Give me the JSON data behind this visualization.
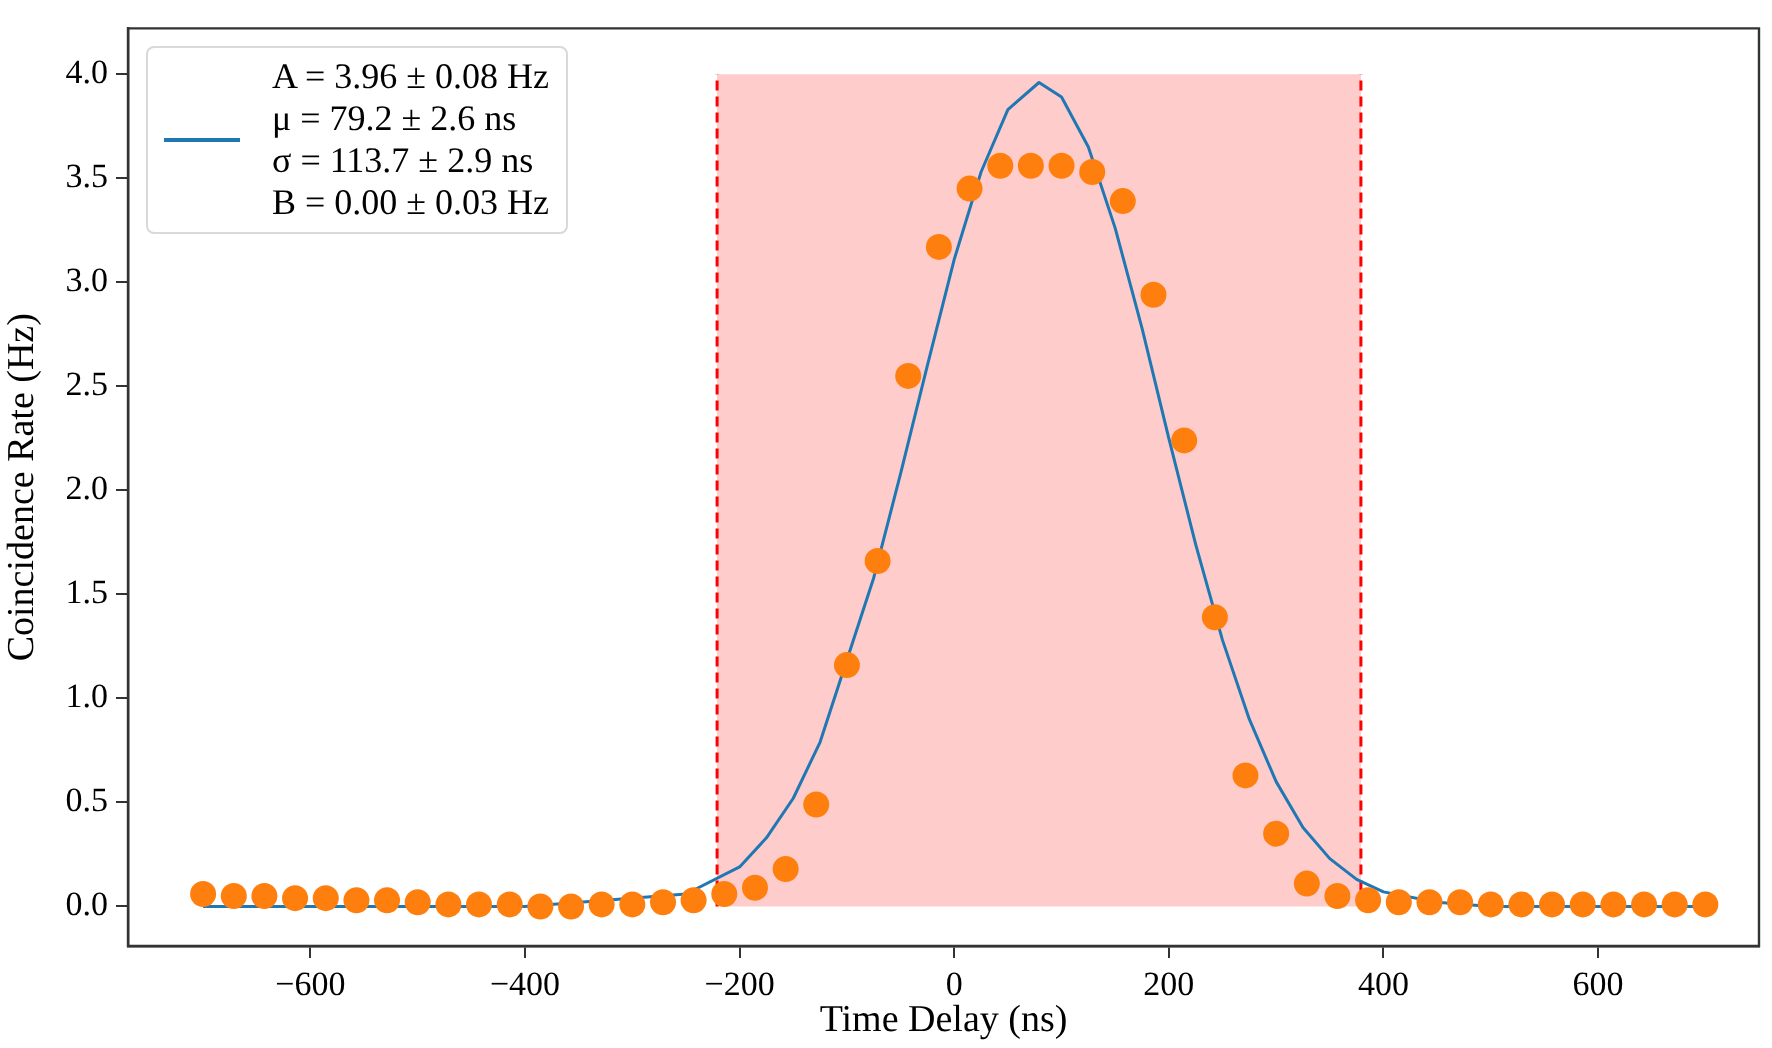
{
  "chart_data": {
    "type": "scatter",
    "xlabel": "Time Delay (ns)",
    "ylabel": "Coincidence Rate (Hz)",
    "xlim": [
      -770,
      750
    ],
    "ylim": [
      -0.19,
      4.22
    ],
    "xticks": [
      {
        "value": -600,
        "label": "−600"
      },
      {
        "value": -400,
        "label": "−400"
      },
      {
        "value": -200,
        "label": "−200"
      },
      0,
      200,
      400,
      600
    ],
    "yticks": [
      {
        "value": 0,
        "label": "0.0"
      },
      {
        "value": 0.5,
        "label": "0.5"
      },
      {
        "value": 1,
        "label": "1.0"
      },
      {
        "value": 1.5,
        "label": "1.5"
      },
      {
        "value": 2,
        "label": "2.0"
      },
      {
        "value": 2.5,
        "label": "2.5"
      },
      {
        "value": 3,
        "label": "3.0"
      },
      {
        "value": 3.5,
        "label": "3.5"
      },
      {
        "value": 4,
        "label": "4.0"
      }
    ],
    "grid": false,
    "legend": "top left",
    "marker": "circle",
    "bands": [
      {
        "axis": "x",
        "from": -221,
        "to": 379,
        "color": "#ffcccc"
      }
    ],
    "ref_lines": [
      {
        "axis": "x",
        "value": -221,
        "color": "#ff0000",
        "line_style": "dashed"
      },
      {
        "axis": "x",
        "value": 379,
        "color": "#ff0000",
        "line_style": "dashed"
      }
    ],
    "series": [
      {
        "type": "scatter",
        "color": "#ff7f0e",
        "x": [
          -700,
          -671.4,
          -642.9,
          -614.3,
          -585.7,
          -557.1,
          -528.6,
          -500,
          -471.4,
          -442.9,
          -414.3,
          -385.7,
          -357.1,
          -328.6,
          -300,
          -271.4,
          -242.9,
          -214.3,
          -185.7,
          -157.1,
          -128.6,
          -100,
          -71.4,
          -42.9,
          -14.3,
          14.3,
          42.9,
          71.4,
          100,
          128.6,
          157.1,
          185.7,
          214.3,
          242.9,
          271.4,
          300,
          328.6,
          357.1,
          385.7,
          414.3,
          442.9,
          471.4,
          500,
          528.6,
          557.1,
          585.7,
          614.3,
          642.9,
          671.4,
          700
        ],
        "values": [
          0.06,
          0.05,
          0.05,
          0.04,
          0.04,
          0.03,
          0.03,
          0.02,
          0.01,
          0.01,
          0.01,
          0.0,
          0.0,
          0.01,
          0.01,
          0.02,
          0.03,
          0.06,
          0.09,
          0.18,
          0.49,
          1.16,
          1.66,
          2.55,
          3.17,
          3.45,
          3.56,
          3.56,
          3.56,
          3.53,
          3.39,
          2.94,
          2.24,
          1.39,
          0.63,
          0.35,
          0.11,
          0.05,
          0.03,
          0.02,
          0.02,
          0.02,
          0.01,
          0.01,
          0.01,
          0.01,
          0.01,
          0.01,
          0.01,
          0.01
        ]
      },
      {
        "type": "line",
        "name": "A = 3.96 ± 0.08 Hz\nμ = 79.2 ± 2.6 ns\nσ = 113.7 ± 2.9 ns\nB = 0.00 ± 0.03 Hz",
        "color": "#1f77b4",
        "line_style": "solid",
        "marker": "none",
        "x": [
          -700,
          -500,
          -400,
          -250,
          -200,
          -175,
          -150,
          -125,
          -75,
          -50,
          -25,
          0,
          25,
          50,
          79,
          100,
          125,
          150,
          175,
          200,
          225,
          250,
          275,
          300,
          325,
          350,
          375,
          400,
          450,
          500,
          600,
          700
        ],
        "values": [
          0,
          0,
          0,
          0.06,
          0.19,
          0.33,
          0.52,
          0.79,
          1.58,
          2.08,
          2.6,
          3.11,
          3.53,
          3.83,
          3.96,
          3.89,
          3.65,
          3.26,
          2.78,
          2.25,
          1.74,
          1.28,
          0.9,
          0.6,
          0.38,
          0.23,
          0.13,
          0.07,
          0.02,
          0,
          0,
          0
        ]
      }
    ]
  }
}
